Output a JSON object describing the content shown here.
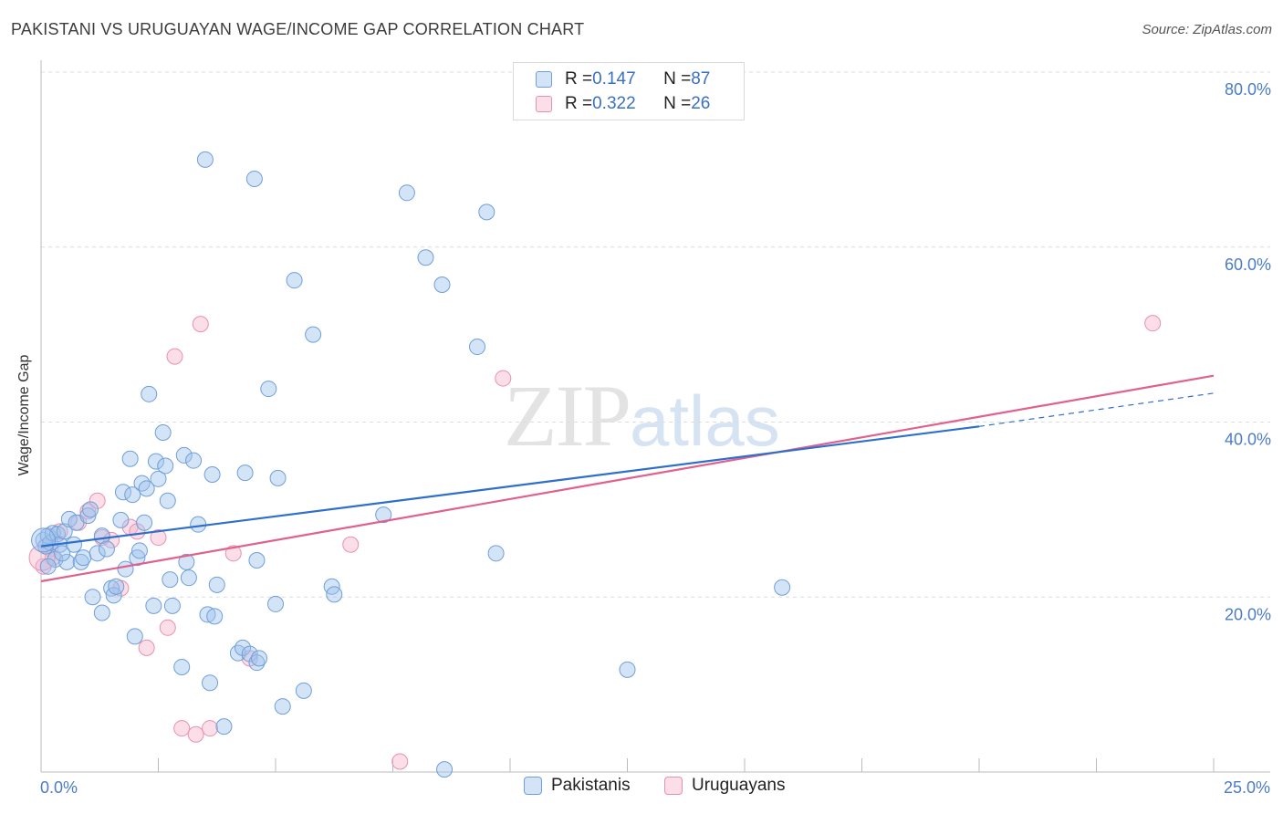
{
  "title": "PAKISTANI VS URUGUAYAN WAGE/INCOME GAP CORRELATION CHART",
  "source": "Source: ZipAtlas.com",
  "watermark": {
    "zip": "ZIP",
    "atlas": "atlas"
  },
  "legend": {
    "pakistanis": {
      "r_label": "R = ",
      "r_value": "0.147",
      "n_label": "N = ",
      "n_value": "87"
    },
    "uruguayans": {
      "r_label": "R = ",
      "r_value": "0.322",
      "n_label": "N = ",
      "n_value": "26"
    }
  },
  "colors": {
    "pak_fill": "rgba(160,196,238,0.45)",
    "pak_stroke": "#6f9fd8",
    "pak_line": "#2f6fcc",
    "uru_fill": "rgba(246,182,204,0.45)",
    "uru_stroke": "#e890b0",
    "uru_line": "#e0608e"
  },
  "chart_data": {
    "type": "scatter",
    "title": "PAKISTANI VS URUGUAYAN WAGE/INCOME GAP CORRELATION CHART",
    "xlabel": "",
    "ylabel": "Wage/Income Gap",
    "xlim": [
      0,
      25
    ],
    "ylim": [
      0,
      80
    ],
    "x_tick_labels": [
      "0.0%",
      "25.0%"
    ],
    "y_ticks": [
      20,
      40,
      60,
      80
    ],
    "y_tick_labels": [
      "20.0%",
      "40.0%",
      "60.0%",
      "80.0%"
    ],
    "series": [
      {
        "name": "Pakistanis",
        "r": 0.147,
        "n": 87,
        "trend": {
          "x0": 0,
          "y0": 25.8,
          "x1": 20,
          "y1": 39.5,
          "dash_to_x": 25,
          "dash_to_y": 43.3
        },
        "points": [
          [
            0.05,
            26.5
          ],
          [
            0.1,
            25.8
          ],
          [
            0.15,
            27.0
          ],
          [
            0.2,
            26.2
          ],
          [
            0.25,
            27.3
          ],
          [
            0.3,
            24.3
          ],
          [
            0.35,
            27.2
          ],
          [
            0.4,
            26.0
          ],
          [
            0.5,
            27.5
          ],
          [
            0.55,
            24.0
          ],
          [
            0.6,
            28.9
          ],
          [
            0.7,
            26.0
          ],
          [
            0.75,
            28.5
          ],
          [
            0.85,
            24.0
          ],
          [
            0.9,
            24.5
          ],
          [
            1.0,
            29.3
          ],
          [
            1.05,
            30.0
          ],
          [
            1.1,
            20.0
          ],
          [
            1.2,
            25.0
          ],
          [
            1.3,
            27.0
          ],
          [
            1.3,
            18.2
          ],
          [
            1.4,
            25.5
          ],
          [
            1.5,
            21.0
          ],
          [
            1.55,
            20.2
          ],
          [
            1.6,
            21.2
          ],
          [
            1.7,
            28.8
          ],
          [
            1.75,
            32.0
          ],
          [
            1.8,
            23.2
          ],
          [
            1.9,
            35.8
          ],
          [
            1.95,
            31.7
          ],
          [
            2.0,
            15.5
          ],
          [
            2.05,
            24.5
          ],
          [
            2.1,
            25.3
          ],
          [
            2.15,
            33.0
          ],
          [
            2.2,
            28.5
          ],
          [
            2.25,
            32.4
          ],
          [
            2.3,
            43.2
          ],
          [
            2.4,
            19.0
          ],
          [
            2.45,
            35.5
          ],
          [
            2.5,
            33.5
          ],
          [
            2.6,
            38.8
          ],
          [
            2.65,
            35.0
          ],
          [
            2.7,
            31.0
          ],
          [
            2.75,
            22.0
          ],
          [
            2.8,
            19.0
          ],
          [
            3.0,
            12.0
          ],
          [
            3.05,
            36.2
          ],
          [
            3.1,
            24.0
          ],
          [
            3.15,
            22.2
          ],
          [
            3.25,
            35.6
          ],
          [
            3.35,
            28.3
          ],
          [
            3.5,
            70.0
          ],
          [
            3.55,
            18.0
          ],
          [
            3.6,
            10.2
          ],
          [
            3.65,
            34.0
          ],
          [
            3.7,
            17.8
          ],
          [
            3.75,
            21.4
          ],
          [
            3.9,
            5.2
          ],
          [
            4.2,
            13.6
          ],
          [
            4.3,
            14.2
          ],
          [
            4.35,
            34.2
          ],
          [
            4.45,
            13.5
          ],
          [
            4.55,
            67.8
          ],
          [
            4.6,
            24.2
          ],
          [
            4.6,
            12.5
          ],
          [
            4.65,
            13.0
          ],
          [
            4.85,
            43.8
          ],
          [
            5.0,
            19.2
          ],
          [
            5.05,
            33.6
          ],
          [
            5.15,
            7.5
          ],
          [
            5.4,
            56.2
          ],
          [
            5.6,
            9.3
          ],
          [
            5.8,
            50.0
          ],
          [
            6.2,
            21.2
          ],
          [
            6.25,
            20.3
          ],
          [
            7.3,
            29.4
          ],
          [
            7.8,
            66.2
          ],
          [
            8.2,
            58.8
          ],
          [
            8.55,
            55.7
          ],
          [
            8.6,
            0.3
          ],
          [
            9.3,
            48.6
          ],
          [
            9.5,
            64.0
          ],
          [
            9.7,
            25.0
          ],
          [
            12.5,
            11.7
          ],
          [
            15.8,
            21.1
          ],
          [
            0.15,
            23.5
          ],
          [
            0.45,
            25.0
          ]
        ]
      },
      {
        "name": "Uruguayans",
        "r": 0.322,
        "n": 26,
        "trend": {
          "x0": 0,
          "y0": 21.8,
          "x1": 25,
          "y1": 45.3
        },
        "points": [
          [
            0.05,
            23.5
          ],
          [
            0.2,
            25.5
          ],
          [
            0.25,
            24.5
          ],
          [
            0.4,
            27.5
          ],
          [
            0.8,
            28.5
          ],
          [
            1.0,
            29.8
          ],
          [
            1.2,
            31.0
          ],
          [
            1.3,
            26.8
          ],
          [
            1.5,
            26.5
          ],
          [
            1.7,
            21.0
          ],
          [
            1.9,
            28.0
          ],
          [
            2.05,
            27.5
          ],
          [
            2.25,
            14.2
          ],
          [
            2.5,
            26.8
          ],
          [
            2.7,
            16.5
          ],
          [
            2.85,
            47.5
          ],
          [
            3.0,
            5.0
          ],
          [
            3.3,
            4.3
          ],
          [
            3.4,
            51.2
          ],
          [
            3.6,
            5.0
          ],
          [
            4.1,
            25.0
          ],
          [
            4.45,
            13.0
          ],
          [
            6.6,
            26.0
          ],
          [
            7.65,
            1.2
          ],
          [
            9.85,
            45.0
          ],
          [
            23.7,
            51.3
          ]
        ]
      }
    ]
  }
}
